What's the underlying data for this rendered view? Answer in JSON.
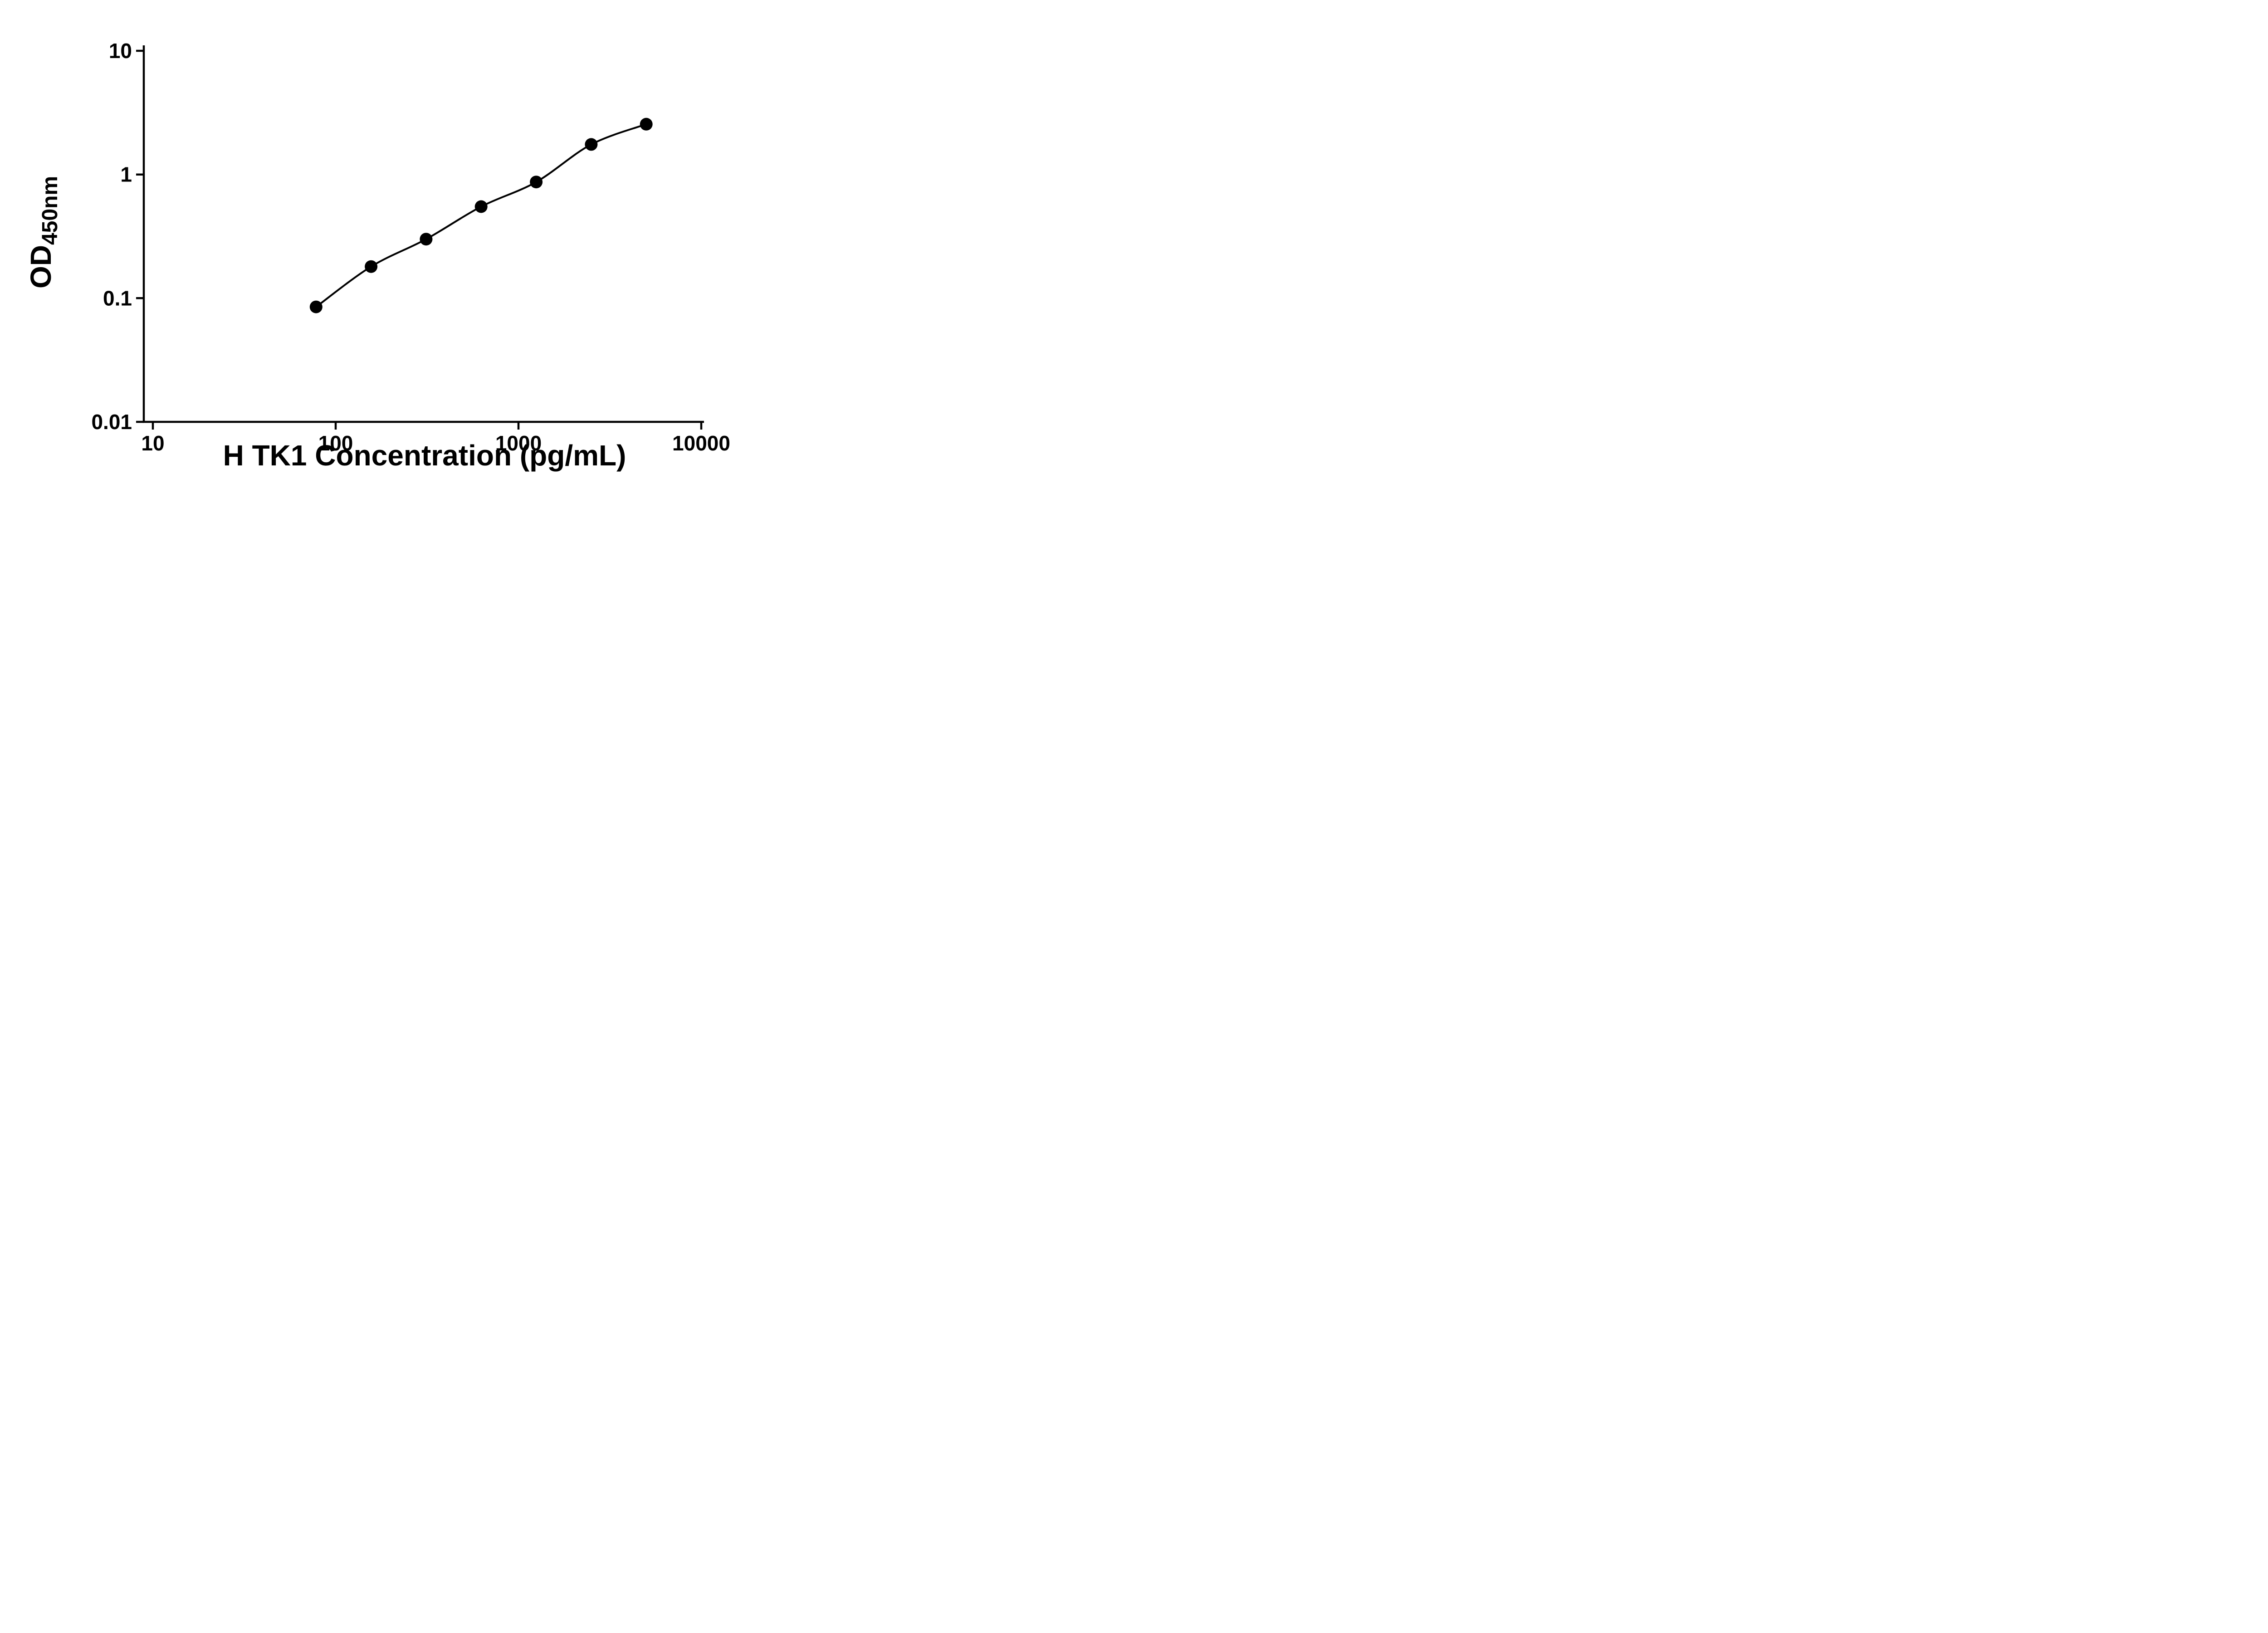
{
  "page": {
    "background": "#ffffff"
  },
  "chart_data": {
    "type": "scatter",
    "curve": "smooth-fit-line",
    "title": "",
    "xlabel": "H TK1 Concentration (pg/mL)",
    "ylabel_main": "OD",
    "ylabel_sub": "450nm",
    "x_scale": "log10",
    "y_scale": "log10",
    "xlim": [
      10,
      10000
    ],
    "ylim": [
      0.01,
      10
    ],
    "x_ticks": [
      10,
      100,
      1000,
      10000
    ],
    "x_tick_labels": [
      "10",
      "100",
      "1000",
      "10000"
    ],
    "y_ticks": [
      0.01,
      0.1,
      1,
      10
    ],
    "y_tick_labels": [
      "0.01",
      "0.1",
      "1",
      "10"
    ],
    "x": [
      78.125,
      156.25,
      312.5,
      625,
      1250,
      2500,
      5000
    ],
    "y": [
      0.085,
      0.18,
      0.3,
      0.55,
      0.87,
      1.75,
      2.55
    ],
    "grid": false,
    "legend": "none",
    "marker_color": "#000000",
    "line_color": "#000000",
    "axis_color": "#000000",
    "background": "#ffffff"
  }
}
